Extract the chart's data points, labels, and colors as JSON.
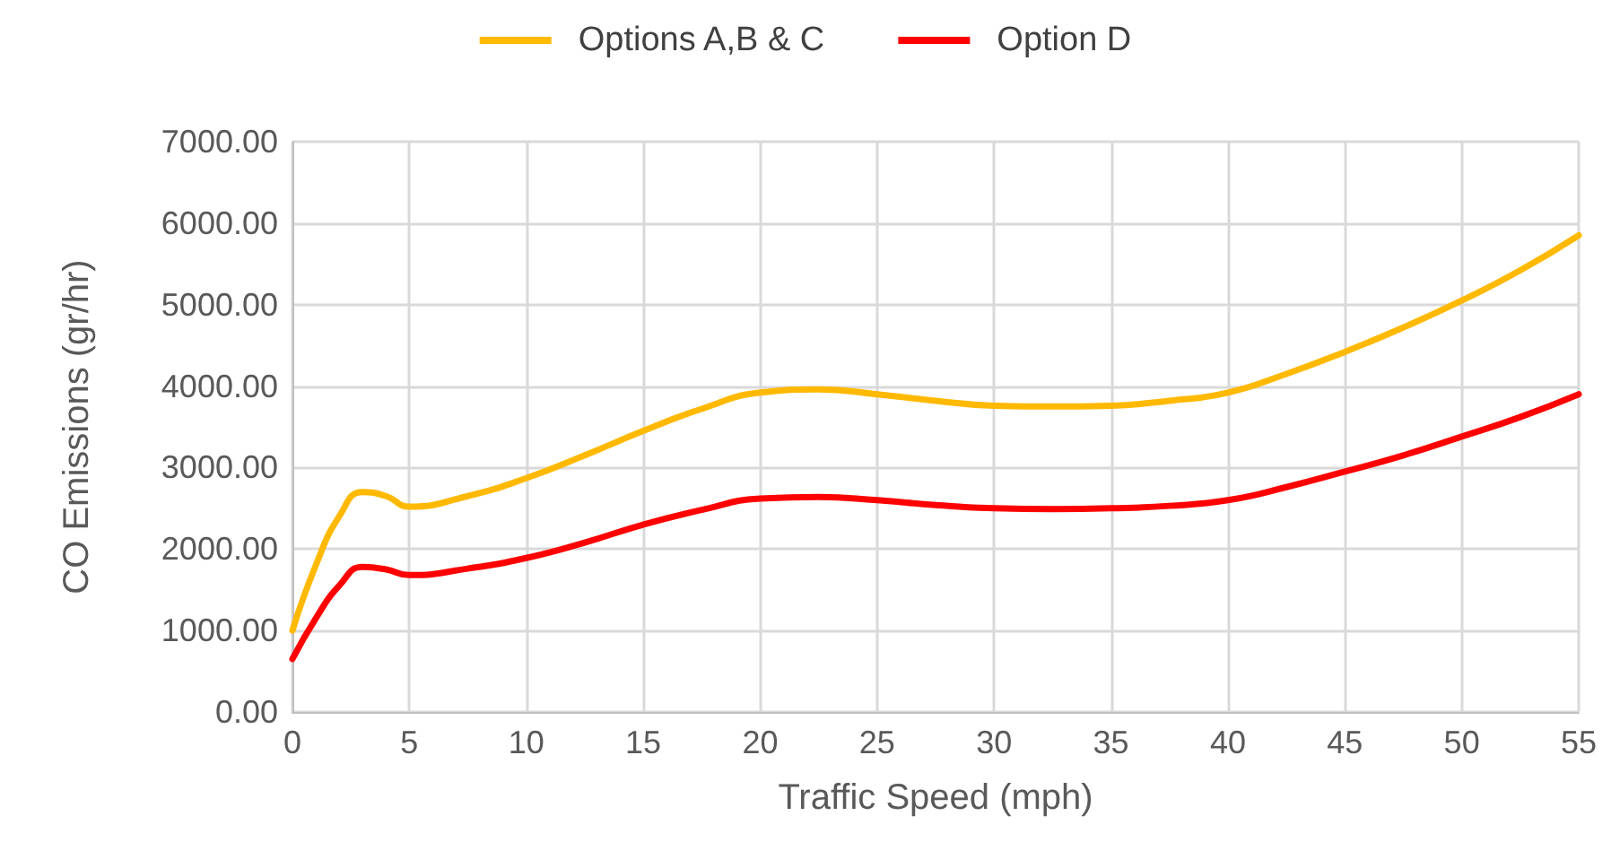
{
  "chart_data": {
    "type": "line",
    "xlabel": "Traffic Speed (mph)",
    "ylabel": "CO Emissions (gr/hr)",
    "x": [
      0,
      1,
      2,
      3,
      4,
      5,
      7.5,
      10,
      12.5,
      15,
      17.5,
      20,
      22.5,
      25,
      27.5,
      30,
      32.5,
      35,
      37.5,
      40,
      42.5,
      45,
      47.5,
      50,
      52.5,
      55
    ],
    "series": [
      {
        "name": "Options A,B & C",
        "color": "#ffb900",
        "values": [
          1000,
          1800,
          2400,
          2700,
          2650,
          2520,
          2650,
          2870,
          3150,
          3450,
          3720,
          3920,
          3960,
          3900,
          3820,
          3760,
          3750,
          3760,
          3820,
          3920,
          4150,
          4420,
          4720,
          5050,
          5420,
          5850
        ]
      },
      {
        "name": "Option D",
        "color": "#ff0000",
        "values": [
          650,
          1150,
          1550,
          1780,
          1750,
          1680,
          1760,
          1890,
          2080,
          2300,
          2480,
          2620,
          2640,
          2600,
          2540,
          2500,
          2490,
          2500,
          2530,
          2600,
          2760,
          2950,
          3150,
          3380,
          3620,
          3900
        ]
      }
    ],
    "xlim": [
      0,
      55
    ],
    "xticks": [
      0,
      5,
      10,
      15,
      20,
      25,
      30,
      35,
      40,
      45,
      50,
      55
    ],
    "ylim": [
      0,
      7000
    ],
    "yticks": [
      {
        "value": 0,
        "label": "0.00"
      },
      {
        "value": 1000,
        "label": "1000.00"
      },
      {
        "value": 2000,
        "label": "2000.00"
      },
      {
        "value": 3000,
        "label": "3000.00"
      },
      {
        "value": 4000,
        "label": "4000.00"
      },
      {
        "value": 5000,
        "label": "5000.00"
      },
      {
        "value": 6000,
        "label": "6000.00"
      },
      {
        "value": 7000,
        "label": "7000.00"
      }
    ],
    "grid": true,
    "legend": "top",
    "marker": "none",
    "line_style": "solid"
  }
}
